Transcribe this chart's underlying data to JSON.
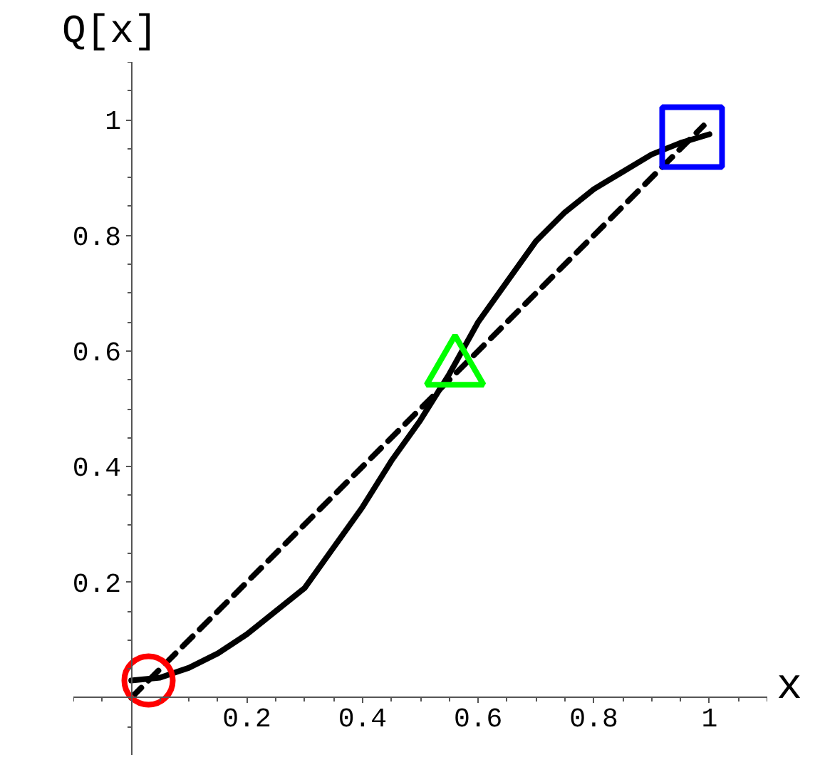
{
  "chart_data": {
    "type": "line",
    "xlabel": "x",
    "ylabel": "Q[x]",
    "xlim": [
      -0.1,
      1.1
    ],
    "ylim": [
      -0.1,
      1.1
    ],
    "xticks": [
      0.2,
      0.4,
      0.6,
      0.8,
      1
    ],
    "yticks": [
      0.2,
      0.4,
      0.6,
      0.8,
      1
    ],
    "grid": false,
    "series": [
      {
        "color": "#000000",
        "line_style": "solid",
        "x": [
          0,
          0.05,
          0.1,
          0.15,
          0.2,
          0.25,
          0.3,
          0.35,
          0.4,
          0.45,
          0.5,
          0.55,
          0.6,
          0.65,
          0.7,
          0.75,
          0.8,
          0.85,
          0.9,
          0.95,
          1
        ],
        "values": [
          0.03,
          0.035,
          0.052,
          0.077,
          0.11,
          0.15,
          0.19,
          0.26,
          0.33,
          0.41,
          0.48,
          0.56,
          0.65,
          0.72,
          0.79,
          0.84,
          0.88,
          0.91,
          0.94,
          0.96,
          0.975
        ]
      },
      {
        "color": "#000000",
        "line_style": "dashed",
        "x": [
          0,
          0.99
        ],
        "values": [
          0,
          0.99
        ]
      },
      {
        "type": "scatter",
        "color": "#ff0000",
        "marker": "circle",
        "x": [
          0.03
        ],
        "values": [
          0.03
        ]
      },
      {
        "type": "scatter",
        "color": "#00ff00",
        "marker": "triangle",
        "x": [
          0.56
        ],
        "values": [
          0.57
        ]
      },
      {
        "type": "scatter",
        "color": "#0000ff",
        "marker": "square",
        "x": [
          0.97
        ],
        "values": [
          0.97
        ]
      }
    ]
  }
}
